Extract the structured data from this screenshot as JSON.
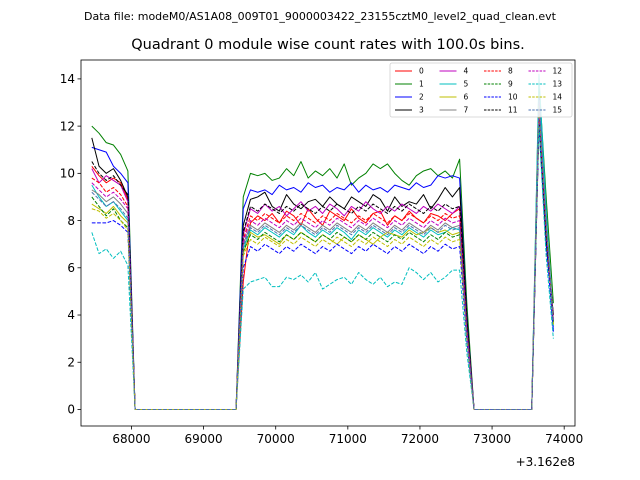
{
  "chart_data": {
    "type": "line",
    "suptitle": "Data file: modeM0/AS1A08_009T01_9000003422_23155cztM0_level2_quad_clean.evt",
    "title": "Quadrant 0 module wise count rates with 100.0s bins.",
    "xlabel": "",
    "ylabel": "",
    "x_offset_label": "+3.162e8",
    "x_offset": 316200000,
    "xlim": [
      67300,
      74150
    ],
    "ylim": [
      -0.7,
      14.8
    ],
    "xticks": [
      68000,
      69000,
      70000,
      71000,
      72000,
      73000,
      74000
    ],
    "xtick_labels": [
      "68000",
      "69000",
      "70000",
      "71000",
      "72000",
      "73000",
      "74000"
    ],
    "yticks": [
      0,
      2,
      4,
      6,
      8,
      10,
      12,
      14
    ],
    "ytick_labels": [
      "0",
      "2",
      "4",
      "6",
      "8",
      "10",
      "12",
      "14"
    ],
    "grid": false,
    "legend_position": "top-right",
    "x": [
      67450,
      67550,
      67650,
      67750,
      67850,
      67950,
      68050,
      68150,
      68250,
      68350,
      68450,
      68550,
      68650,
      68750,
      68850,
      68950,
      69050,
      69150,
      69250,
      69350,
      69450,
      69550,
      69650,
      69750,
      69850,
      69950,
      70050,
      70150,
      70250,
      70350,
      70450,
      70550,
      70650,
      70750,
      70850,
      70950,
      71050,
      71150,
      71250,
      71350,
      71450,
      71550,
      71650,
      71750,
      71850,
      71950,
      72050,
      72150,
      72250,
      72350,
      72450,
      72550,
      72650,
      72750,
      72850,
      72950,
      73050,
      73150,
      73250,
      73350,
      73450,
      73550,
      73650,
      73750,
      73850
    ],
    "series": [
      {
        "name": "0",
        "color": "#ff0000",
        "dash": "solid",
        "values": [
          10.3,
          9.9,
          9.6,
          9.8,
          9.6,
          8.9,
          0,
          0,
          0,
          0,
          0,
          0,
          0,
          0,
          0,
          0,
          0,
          0,
          0,
          0,
          0,
          5.4,
          7.9,
          8.2,
          8.0,
          8.3,
          7.9,
          8.4,
          8.2,
          7.8,
          8.5,
          8.1,
          7.8,
          8.4,
          8.2,
          8.0,
          8.5,
          8.1,
          7.9,
          8.3,
          8.4,
          7.8,
          8.2,
          8.0,
          8.4,
          8.1,
          7.9,
          8.3,
          8.2,
          8.0,
          8.3,
          8.5,
          3.6,
          0,
          0,
          0,
          0,
          0,
          0,
          0,
          0,
          0,
          12.0,
          7.0,
          4.0
        ]
      },
      {
        "name": "1",
        "color": "#008000",
        "dash": "solid",
        "values": [
          12.0,
          11.7,
          11.3,
          11.2,
          10.8,
          10.1,
          0,
          0,
          0,
          0,
          0,
          0,
          0,
          0,
          0,
          0,
          0,
          0,
          0,
          0,
          0,
          9.0,
          10.0,
          9.9,
          10.0,
          9.7,
          9.8,
          10.2,
          9.9,
          10.5,
          9.8,
          10.1,
          9.9,
          10.2,
          9.8,
          10.4,
          9.5,
          9.8,
          10.0,
          10.4,
          10.2,
          10.4,
          10.0,
          9.7,
          9.5,
          9.9,
          10.1,
          10.2,
          9.9,
          10.1,
          9.8,
          10.6,
          4.5,
          0,
          0,
          0,
          0,
          0,
          0,
          0,
          0,
          0,
          13.9,
          9.0,
          4.5
        ]
      },
      {
        "name": "2",
        "color": "#0000ff",
        "dash": "solid",
        "values": [
          11.1,
          11.0,
          10.9,
          10.3,
          10.0,
          9.6,
          0,
          0,
          0,
          0,
          0,
          0,
          0,
          0,
          0,
          0,
          0,
          0,
          0,
          0,
          0,
          8.5,
          9.3,
          9.2,
          9.3,
          9.1,
          9.5,
          9.3,
          9.4,
          9.2,
          9.6,
          9.4,
          9.5,
          9.2,
          9.4,
          9.3,
          9.6,
          9.2,
          9.5,
          9.3,
          9.4,
          9.2,
          9.5,
          9.4,
          9.3,
          9.6,
          9.4,
          9.5,
          9.9,
          9.8,
          9.9,
          9.8,
          4.0,
          0,
          0,
          0,
          0,
          0,
          0,
          0,
          0,
          0,
          13.2,
          8.0,
          3.3
        ]
      },
      {
        "name": "3",
        "color": "#000000",
        "dash": "solid",
        "values": [
          11.5,
          10.3,
          10.0,
          10.2,
          9.7,
          9.0,
          0,
          0,
          0,
          0,
          0,
          0,
          0,
          0,
          0,
          0,
          0,
          0,
          0,
          0,
          0,
          7.8,
          8.9,
          9.0,
          9.2,
          8.6,
          8.4,
          9.1,
          8.7,
          8.5,
          8.8,
          8.9,
          8.6,
          9.0,
          8.7,
          8.5,
          9.0,
          8.8,
          8.6,
          9.1,
          8.9,
          8.4,
          9.0,
          8.6,
          8.8,
          8.7,
          9.1,
          8.5,
          8.9,
          9.4,
          9.0,
          9.4,
          3.9,
          0,
          0,
          0,
          0,
          0,
          0,
          0,
          0,
          0,
          12.2,
          7.0,
          4.0
        ]
      },
      {
        "name": "4",
        "color": "#bf00bf",
        "dash": "solid",
        "values": [
          10.2,
          9.6,
          9.9,
          9.7,
          9.5,
          8.8,
          0,
          0,
          0,
          0,
          0,
          0,
          0,
          0,
          0,
          0,
          0,
          0,
          0,
          0,
          0,
          7.4,
          8.5,
          8.3,
          8.7,
          8.4,
          8.6,
          8.2,
          8.5,
          8.8,
          8.4,
          8.6,
          8.3,
          8.7,
          8.5,
          8.2,
          8.6,
          8.4,
          8.8,
          8.5,
          8.3,
          8.6,
          8.4,
          8.7,
          8.5,
          8.3,
          8.6,
          8.4,
          8.7,
          8.5,
          8.3,
          8.6,
          3.5,
          0,
          0,
          0,
          0,
          0,
          0,
          0,
          0,
          0,
          12.5,
          7.5,
          3.8
        ]
      },
      {
        "name": "5",
        "color": "#00bfbf",
        "dash": "solid",
        "values": [
          9.5,
          9.0,
          8.6,
          8.8,
          8.4,
          8.0,
          0,
          0,
          0,
          0,
          0,
          0,
          0,
          0,
          0,
          0,
          0,
          0,
          0,
          0,
          0,
          6.8,
          7.6,
          7.4,
          7.7,
          7.5,
          7.3,
          7.6,
          7.4,
          7.8,
          7.5,
          7.3,
          7.6,
          7.4,
          7.7,
          7.5,
          7.2,
          7.6,
          7.4,
          7.7,
          7.5,
          7.3,
          7.6,
          7.4,
          7.7,
          7.5,
          7.3,
          7.6,
          7.4,
          7.5,
          7.7,
          7.6,
          3.2,
          0,
          0,
          0,
          0,
          0,
          0,
          0,
          0,
          0,
          14.2,
          8.5,
          3.5
        ]
      },
      {
        "name": "6",
        "color": "#bfbf00",
        "dash": "solid",
        "values": [
          8.7,
          8.5,
          8.3,
          8.6,
          8.2,
          7.9,
          0,
          0,
          0,
          0,
          0,
          0,
          0,
          0,
          0,
          0,
          0,
          0,
          0,
          0,
          0,
          6.6,
          7.5,
          7.3,
          7.4,
          7.2,
          7.0,
          7.4,
          7.2,
          7.5,
          7.3,
          7.1,
          7.4,
          7.2,
          7.0,
          7.3,
          7.1,
          7.4,
          7.2,
          7.0,
          7.3,
          7.5,
          7.4,
          7.3,
          7.6,
          7.4,
          7.5,
          7.7,
          7.5,
          7.6,
          7.4,
          7.5,
          3.0,
          0,
          0,
          0,
          0,
          0,
          0,
          0,
          0,
          0,
          12.8,
          7.5,
          3.6
        ]
      },
      {
        "name": "7",
        "color": "#808080",
        "dash": "solid",
        "values": [
          9.3,
          9.1,
          8.8,
          9.0,
          8.7,
          8.3,
          0,
          0,
          0,
          0,
          0,
          0,
          0,
          0,
          0,
          0,
          0,
          0,
          0,
          0,
          0,
          7.0,
          7.8,
          7.6,
          7.9,
          7.7,
          7.5,
          7.8,
          7.6,
          7.9,
          7.7,
          7.5,
          7.8,
          7.6,
          7.9,
          7.7,
          7.5,
          7.8,
          7.6,
          7.9,
          7.7,
          7.5,
          7.8,
          7.6,
          7.9,
          7.7,
          7.5,
          7.8,
          7.6,
          7.9,
          7.7,
          7.8,
          3.3,
          0,
          0,
          0,
          0,
          0,
          0,
          0,
          0,
          0,
          13.0,
          7.8,
          3.7
        ]
      },
      {
        "name": "8",
        "color": "#ff0000",
        "dash": "dashed",
        "values": [
          9.8,
          9.6,
          9.2,
          9.4,
          9.1,
          8.6,
          0,
          0,
          0,
          0,
          0,
          0,
          0,
          0,
          0,
          0,
          0,
          0,
          0,
          0,
          0,
          7.2,
          8.2,
          8.0,
          8.3,
          8.1,
          7.9,
          8.2,
          8.0,
          8.3,
          8.1,
          7.9,
          8.2,
          8.0,
          8.3,
          8.1,
          7.9,
          8.2,
          8.0,
          8.3,
          8.1,
          7.9,
          8.2,
          8.0,
          8.3,
          8.1,
          7.9,
          8.2,
          8.0,
          8.3,
          8.1,
          8.2,
          3.5,
          0,
          0,
          0,
          0,
          0,
          0,
          0,
          0,
          0,
          12.3,
          7.3,
          3.9
        ]
      },
      {
        "name": "9",
        "color": "#008000",
        "dash": "dashed",
        "values": [
          9.0,
          8.6,
          8.2,
          8.5,
          8.0,
          7.7,
          0,
          0,
          0,
          0,
          0,
          0,
          0,
          0,
          0,
          0,
          0,
          0,
          0,
          0,
          0,
          6.7,
          7.4,
          7.2,
          7.5,
          7.3,
          7.1,
          7.4,
          7.2,
          7.5,
          7.3,
          7.1,
          7.4,
          7.2,
          7.5,
          7.3,
          7.1,
          7.4,
          7.2,
          7.5,
          7.3,
          7.1,
          7.4,
          7.2,
          7.5,
          7.3,
          7.1,
          7.4,
          7.2,
          7.5,
          7.3,
          7.4,
          3.1,
          0,
          0,
          0,
          0,
          0,
          0,
          0,
          0,
          0,
          12.6,
          7.6,
          3.7
        ]
      },
      {
        "name": "10",
        "color": "#0000ff",
        "dash": "dashed",
        "values": [
          7.9,
          7.9,
          7.9,
          8.0,
          7.8,
          7.5,
          0,
          0,
          0,
          0,
          0,
          0,
          0,
          0,
          0,
          0,
          0,
          0,
          0,
          0,
          0,
          6.0,
          6.9,
          6.7,
          7.0,
          6.8,
          6.6,
          6.9,
          6.7,
          7.0,
          6.8,
          6.6,
          6.9,
          6.7,
          7.0,
          6.8,
          6.6,
          6.9,
          6.7,
          7.0,
          6.8,
          6.6,
          6.9,
          6.7,
          7.0,
          6.8,
          6.6,
          6.9,
          6.7,
          7.0,
          6.8,
          6.9,
          2.9,
          0,
          0,
          0,
          0,
          0,
          0,
          0,
          0,
          0,
          12.1,
          7.1,
          3.3
        ]
      },
      {
        "name": "11",
        "color": "#000000",
        "dash": "dashed",
        "values": [
          10.5,
          10.0,
          9.7,
          9.9,
          9.5,
          9.1,
          0,
          0,
          0,
          0,
          0,
          0,
          0,
          0,
          0,
          0,
          0,
          0,
          0,
          0,
          0,
          7.5,
          8.6,
          8.4,
          8.7,
          8.5,
          8.3,
          8.6,
          8.4,
          8.7,
          8.5,
          8.3,
          8.6,
          8.4,
          8.7,
          8.5,
          8.3,
          8.6,
          8.4,
          8.7,
          8.5,
          8.3,
          8.6,
          8.4,
          8.7,
          8.5,
          8.3,
          8.6,
          8.4,
          8.7,
          8.5,
          8.6,
          3.7,
          0,
          0,
          0,
          0,
          0,
          0,
          0,
          0,
          0,
          12.4,
          7.4,
          4.0
        ]
      },
      {
        "name": "12",
        "color": "#bf00bf",
        "dash": "dashed",
        "values": [
          9.6,
          9.3,
          9.0,
          9.2,
          8.9,
          8.5,
          0,
          0,
          0,
          0,
          0,
          0,
          0,
          0,
          0,
          0,
          0,
          0,
          0,
          0,
          0,
          7.1,
          8.0,
          7.8,
          8.1,
          7.9,
          7.7,
          8.0,
          7.8,
          8.1,
          7.9,
          7.7,
          8.0,
          7.8,
          8.1,
          7.9,
          7.7,
          8.0,
          7.8,
          8.1,
          7.9,
          7.7,
          8.0,
          7.8,
          8.1,
          7.9,
          7.7,
          8.0,
          7.8,
          8.1,
          7.9,
          8.0,
          3.4,
          0,
          0,
          0,
          0,
          0,
          0,
          0,
          0,
          0,
          12.7,
          7.7,
          3.8
        ]
      },
      {
        "name": "13",
        "color": "#00bfbf",
        "dash": "dashed",
        "values": [
          7.5,
          6.6,
          6.8,
          6.4,
          6.7,
          6.1,
          0,
          0,
          0,
          0,
          0,
          0,
          0,
          0,
          0,
          0,
          0,
          0,
          0,
          0,
          0,
          5.1,
          5.4,
          5.5,
          5.6,
          5.2,
          5.2,
          5.6,
          5.5,
          5.7,
          5.4,
          5.8,
          5.1,
          5.3,
          5.5,
          5.6,
          5.3,
          5.8,
          5.5,
          5.3,
          5.6,
          5.2,
          5.4,
          5.3,
          6.0,
          5.8,
          5.5,
          5.8,
          5.4,
          5.6,
          5.9,
          5.9,
          2.4,
          0,
          0,
          0,
          0,
          0,
          0,
          0,
          0,
          0,
          12.0,
          6.5,
          3.0
        ]
      },
      {
        "name": "14",
        "color": "#bfbf00",
        "dash": "dashed",
        "values": [
          8.5,
          8.4,
          8.1,
          8.3,
          8.0,
          7.6,
          0,
          0,
          0,
          0,
          0,
          0,
          0,
          0,
          0,
          0,
          0,
          0,
          0,
          0,
          0,
          6.5,
          7.2,
          7.0,
          7.3,
          7.1,
          6.9,
          7.2,
          7.0,
          7.3,
          7.1,
          6.9,
          7.2,
          7.0,
          7.3,
          7.1,
          6.9,
          7.2,
          7.0,
          7.3,
          7.1,
          6.9,
          7.2,
          7.0,
          7.3,
          7.1,
          6.9,
          7.2,
          7.0,
          7.3,
          7.1,
          7.2,
          3.0,
          0,
          0,
          0,
          0,
          0,
          0,
          0,
          0,
          0,
          12.9,
          7.9,
          3.6
        ]
      },
      {
        "name": "15",
        "color": "#4c72b0",
        "dash": "dashed",
        "values": [
          9.2,
          8.9,
          8.6,
          8.8,
          8.5,
          8.1,
          0,
          0,
          0,
          0,
          0,
          0,
          0,
          0,
          0,
          0,
          0,
          0,
          0,
          0,
          0,
          6.9,
          7.7,
          7.5,
          7.8,
          7.6,
          7.4,
          7.7,
          7.5,
          7.8,
          7.6,
          7.4,
          7.7,
          7.5,
          7.8,
          7.6,
          7.4,
          7.7,
          7.5,
          7.8,
          7.6,
          7.4,
          7.7,
          7.5,
          7.8,
          7.6,
          7.4,
          7.7,
          7.5,
          7.8,
          7.6,
          7.7,
          3.2,
          0,
          0,
          0,
          0,
          0,
          0,
          0,
          0,
          0,
          13.1,
          8.1,
          3.7
        ]
      }
    ]
  }
}
